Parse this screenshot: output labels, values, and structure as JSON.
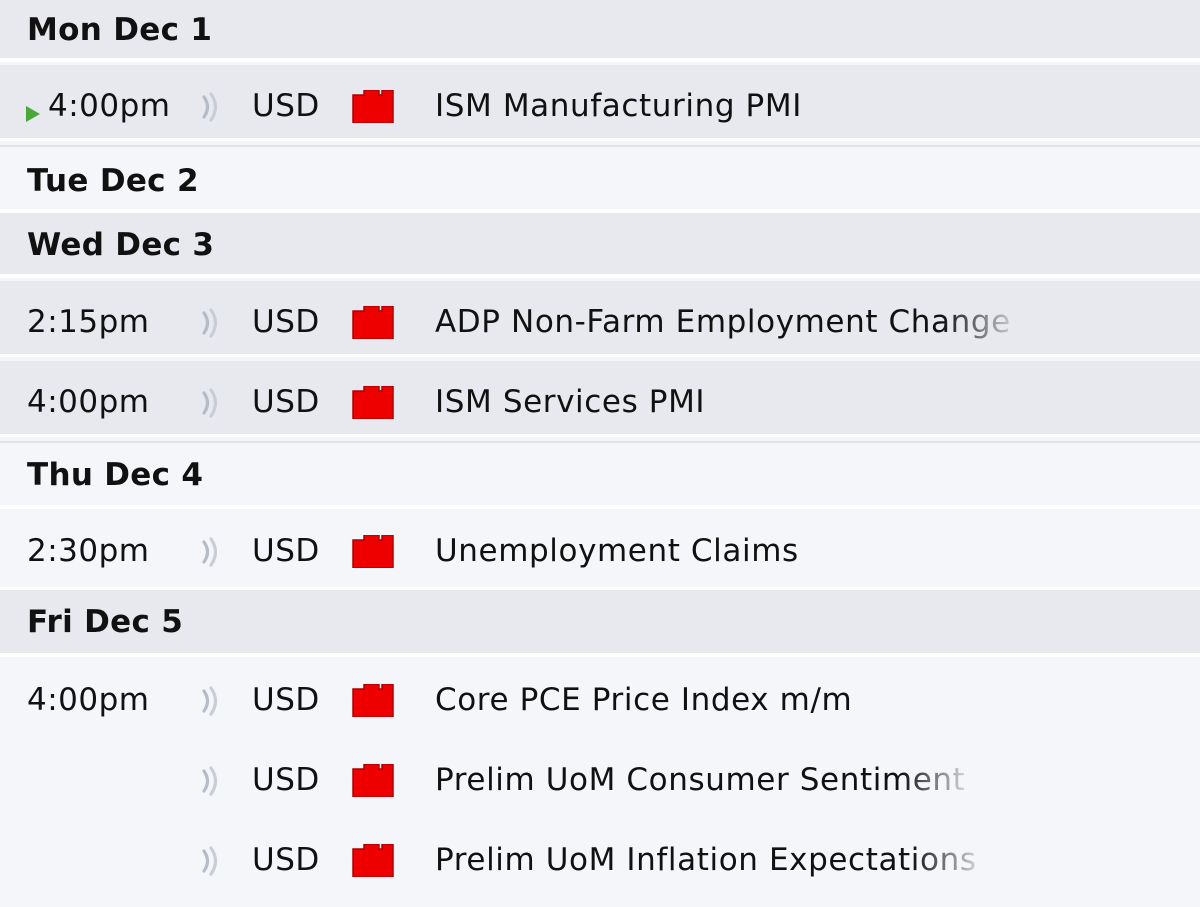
{
  "colors": {
    "impact_high": "#ee0000",
    "now_marker": "#49a83a",
    "row_gray": "#e8e9ee",
    "row_light": "#f5f6fa"
  },
  "days": [
    {
      "label": "Mon Dec 1",
      "events": [
        {
          "time": "4:00pm",
          "currency": "USD",
          "impact_icon": "high-impact-folder-icon",
          "title": "ISM Manufacturing PMI",
          "current": true
        }
      ]
    },
    {
      "label": "Tue Dec 2",
      "events": []
    },
    {
      "label": "Wed Dec 3",
      "events": [
        {
          "time": "2:15pm",
          "currency": "USD",
          "impact_icon": "high-impact-folder-icon",
          "title": "ADP Non-Farm Employment Change"
        },
        {
          "time": "4:00pm",
          "currency": "USD",
          "impact_icon": "high-impact-folder-icon",
          "title": "ISM Services PMI"
        }
      ]
    },
    {
      "label": "Thu Dec 4",
      "events": [
        {
          "time": "2:30pm",
          "currency": "USD",
          "impact_icon": "high-impact-folder-icon",
          "title": "Unemployment Claims"
        }
      ]
    },
    {
      "label": "Fri Dec 5",
      "events": [
        {
          "time": "4:00pm",
          "currency": "USD",
          "impact_icon": "high-impact-folder-icon",
          "title": "Core PCE Price Index m/m"
        },
        {
          "time": "",
          "currency": "USD",
          "impact_icon": "high-impact-folder-icon",
          "title": "Prelim UoM Consumer Sentiment"
        },
        {
          "time": "",
          "currency": "USD",
          "impact_icon": "high-impact-folder-icon",
          "title": "Prelim UoM Inflation Expectations"
        }
      ]
    }
  ]
}
